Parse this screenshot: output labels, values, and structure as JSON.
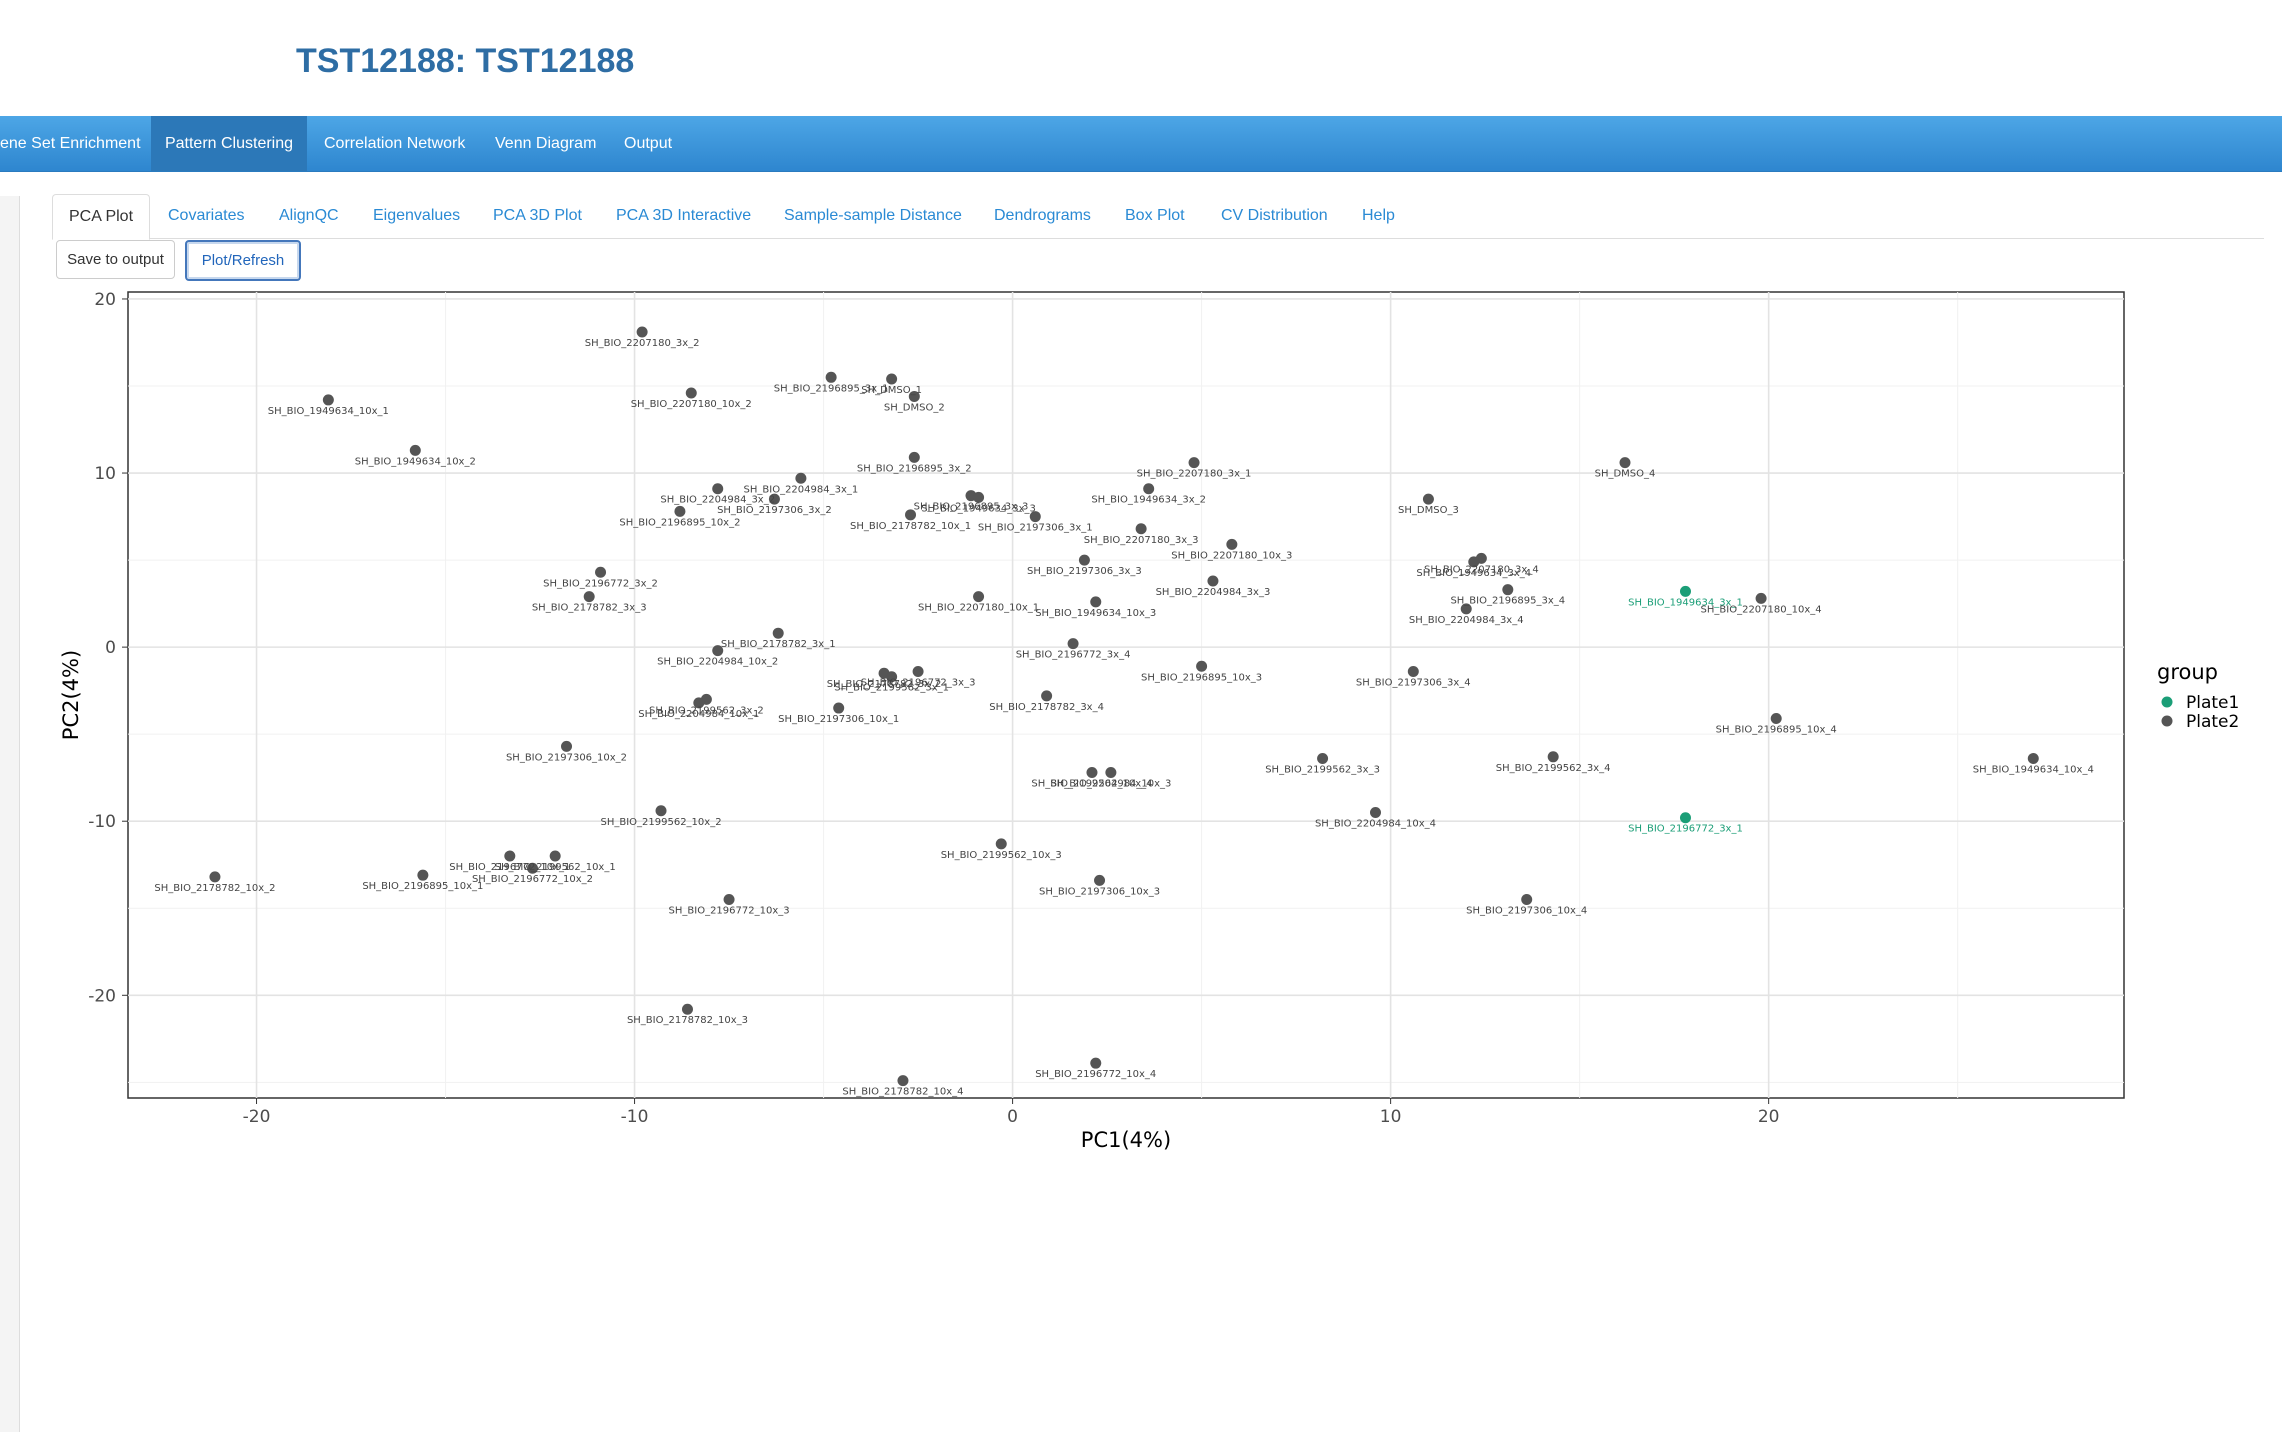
{
  "page": {
    "title": "TST12188: TST12188"
  },
  "navbar": {
    "items": [
      {
        "label": "ene Set Enrichment",
        "active": false
      },
      {
        "label": "Pattern Clustering",
        "active": true
      },
      {
        "label": "Correlation Network",
        "active": false
      },
      {
        "label": "Venn Diagram",
        "active": false
      },
      {
        "label": "Output",
        "active": false
      }
    ]
  },
  "tabs": [
    {
      "label": "PCA Plot",
      "active": true
    },
    {
      "label": "Covariates",
      "active": false
    },
    {
      "label": "AlignQC",
      "active": false
    },
    {
      "label": "Eigenvalues",
      "active": false
    },
    {
      "label": "PCA 3D Plot",
      "active": false
    },
    {
      "label": "PCA 3D Interactive",
      "active": false
    },
    {
      "label": "Sample-sample Distance",
      "active": false
    },
    {
      "label": "Dendrograms",
      "active": false
    },
    {
      "label": "Box Plot",
      "active": false
    },
    {
      "label": "CV Distribution",
      "active": false
    },
    {
      "label": "Help",
      "active": false
    }
  ],
  "buttons": {
    "save_label": "Save to output",
    "plot_label": "Plot/Refresh"
  },
  "chart_data": {
    "type": "scatter",
    "xlabel": "PC1(4%)",
    "ylabel": "PC2(4%)",
    "xlim": [
      -23.4,
      29.4
    ],
    "ylim": [
      -25.9,
      20.4
    ],
    "xticks": [
      -20,
      -10,
      0,
      10,
      20
    ],
    "yticks": [
      20,
      10,
      0,
      -10,
      -20
    ],
    "grid": true,
    "legend": {
      "title": "group",
      "placement": "right",
      "entries": [
        {
          "name": "Plate1",
          "color": "#1b9e77"
        },
        {
          "name": "Plate2",
          "color": "#555555"
        }
      ]
    },
    "points": [
      {
        "label": "SH_BIO_2207180_3x_2",
        "x": -9.8,
        "y": 18.1,
        "group": "Plate2"
      },
      {
        "label": "SH_BIO_1949634_10x_1",
        "x": -18.1,
        "y": 14.2,
        "group": "Plate2"
      },
      {
        "label": "SH_BIO_2207180_10x_2",
        "x": -8.5,
        "y": 14.6,
        "group": "Plate2"
      },
      {
        "label": "SH_BIO_2196895_3x_1",
        "x": -4.8,
        "y": 15.5,
        "group": "Plate2"
      },
      {
        "label": "SH_DMSO_1",
        "x": -3.2,
        "y": 15.4,
        "group": "Plate2"
      },
      {
        "label": "SH_DMSO_2",
        "x": -2.6,
        "y": 14.4,
        "group": "Plate2"
      },
      {
        "label": "SH_BIO_1949634_10x_2",
        "x": -15.8,
        "y": 11.3,
        "group": "Plate2"
      },
      {
        "label": "SH_BIO_2196895_3x_2",
        "x": -2.6,
        "y": 10.9,
        "group": "Plate2"
      },
      {
        "label": "SH_BIO_2204984_3x_1",
        "x": -5.6,
        "y": 9.7,
        "group": "Plate2"
      },
      {
        "label": "SH_BIO_2204984_3x_2",
        "x": -7.8,
        "y": 9.1,
        "group": "Plate2"
      },
      {
        "label": "SH_BIO_2207180_3x_1",
        "x": 4.8,
        "y": 10.6,
        "group": "Plate2"
      },
      {
        "label": "SH_BIO_1949634_3x_2",
        "x": 3.6,
        "y": 9.1,
        "group": "Plate2"
      },
      {
        "label": "SH_BIO_2196895_3x_3",
        "x": -1.1,
        "y": 8.7,
        "group": "Plate2"
      },
      {
        "label": "SH_BIO_1949634_3x_3",
        "x": -0.9,
        "y": 8.6,
        "group": "Plate2"
      },
      {
        "label": "SH_BIO_2197306_3x_2",
        "x": -6.3,
        "y": 8.5,
        "group": "Plate2"
      },
      {
        "label": "SH_BIO_2196895_10x_2",
        "x": -8.8,
        "y": 7.8,
        "group": "Plate2"
      },
      {
        "label": "SH_BIO_2178782_10x_1",
        "x": -2.7,
        "y": 7.6,
        "group": "Plate2"
      },
      {
        "label": "SH_BIO_2197306_3x_1",
        "x": 0.6,
        "y": 7.5,
        "group": "Plate2"
      },
      {
        "label": "SH_BIO_2207180_3x_3",
        "x": 3.4,
        "y": 6.8,
        "group": "Plate2"
      },
      {
        "label": "SH_BIO_2207180_10x_3",
        "x": 5.8,
        "y": 5.9,
        "group": "Plate2"
      },
      {
        "label": "SH_DMSO_4",
        "x": 16.2,
        "y": 10.6,
        "group": "Plate2"
      },
      {
        "label": "SH_DMSO_3",
        "x": 11.0,
        "y": 8.5,
        "group": "Plate2"
      },
      {
        "label": "SH_BIO_2207180_3x_4",
        "x": 12.4,
        "y": 5.1,
        "group": "Plate2"
      },
      {
        "label": "SH_BIO_1949634_3x_4",
        "x": 12.2,
        "y": 4.9,
        "group": "Plate2"
      },
      {
        "label": "SH_BIO_2196895_3x_4",
        "x": 13.1,
        "y": 3.3,
        "group": "Plate2"
      },
      {
        "label": "SH_BIO_2204984_3x_4",
        "x": 12.0,
        "y": 2.2,
        "group": "Plate2"
      },
      {
        "label": "SH_BIO_1949634_3x_1",
        "x": 17.8,
        "y": 3.2,
        "group": "Plate1"
      },
      {
        "label": "SH_BIO_2207180_10x_4",
        "x": 19.8,
        "y": 2.8,
        "group": "Plate2"
      },
      {
        "label": "SH_BIO_2197306_3x_3",
        "x": 1.9,
        "y": 5.0,
        "group": "Plate2"
      },
      {
        "label": "SH_BIO_2204984_3x_3",
        "x": 5.3,
        "y": 3.8,
        "group": "Plate2"
      },
      {
        "label": "SH_BIO_2207180_10x_1",
        "x": -0.9,
        "y": 2.9,
        "group": "Plate2"
      },
      {
        "label": "SH_BIO_1949634_10x_3",
        "x": 2.2,
        "y": 2.6,
        "group": "Plate2"
      },
      {
        "label": "SH_BIO_2196772_3x_2",
        "x": -10.9,
        "y": 4.3,
        "group": "Plate2"
      },
      {
        "label": "SH_BIO_2178782_3x_3",
        "x": -11.2,
        "y": 2.9,
        "group": "Plate2"
      },
      {
        "label": "SH_BIO_2178782_3x_1",
        "x": -6.2,
        "y": 0.8,
        "group": "Plate2"
      },
      {
        "label": "SH_BIO_2204984_10x_2",
        "x": -7.8,
        "y": -0.2,
        "group": "Plate2"
      },
      {
        "label": "SH_BIO_2196772_3x_4",
        "x": 1.6,
        "y": 0.2,
        "group": "Plate2"
      },
      {
        "label": "SH_BIO_2196895_10x_3",
        "x": 5.0,
        "y": -1.1,
        "group": "Plate2"
      },
      {
        "label": "SH_BIO_2197306_3x_4",
        "x": 10.6,
        "y": -1.4,
        "group": "Plate2"
      },
      {
        "label": "SH_BIO_2178782_3x_2",
        "x": -3.4,
        "y": -1.5,
        "group": "Plate2"
      },
      {
        "label": "SH_BIO_2196772_3x_3",
        "x": -2.5,
        "y": -1.4,
        "group": "Plate2"
      },
      {
        "label": "SH_BIO_2199562_3x_1",
        "x": -3.2,
        "y": -1.7,
        "group": "Plate2"
      },
      {
        "label": "SH_BIO_2199562_3x_2",
        "x": -8.1,
        "y": -3.0,
        "group": "Plate2"
      },
      {
        "label": "SH_BIO_2204984_10x_1",
        "x": -8.3,
        "y": -3.2,
        "group": "Plate2"
      },
      {
        "label": "SH_BIO_2178782_3x_4",
        "x": 0.9,
        "y": -2.8,
        "group": "Plate2"
      },
      {
        "label": "SH_BIO_2197306_10x_1",
        "x": -4.6,
        "y": -3.5,
        "group": "Plate2"
      },
      {
        "label": "SH_BIO_2196895_10x_4",
        "x": 20.2,
        "y": -4.1,
        "group": "Plate2"
      },
      {
        "label": "SH_BIO_2197306_10x_2",
        "x": -11.8,
        "y": -5.7,
        "group": "Plate2"
      },
      {
        "label": "SH_BIO_2199562_3x_4",
        "x": 14.3,
        "y": -6.3,
        "group": "Plate2"
      },
      {
        "label": "SH_BIO_1949634_10x_4",
        "x": 27.0,
        "y": -6.4,
        "group": "Plate2"
      },
      {
        "label": "SH_BIO_2199562_3x_3",
        "x": 8.2,
        "y": -6.4,
        "group": "Plate2"
      },
      {
        "label": "SH_BIO_2199562_10x_4",
        "x": 2.1,
        "y": -7.2,
        "group": "Plate2"
      },
      {
        "label": "SH_BIO_2204984_10x_3",
        "x": 2.6,
        "y": -7.2,
        "group": "Plate2"
      },
      {
        "label": "SH_BIO_2199562_10x_2",
        "x": -9.3,
        "y": -9.4,
        "group": "Plate2"
      },
      {
        "label": "SH_BIO_2204984_10x_4",
        "x": 9.6,
        "y": -9.5,
        "group": "Plate2"
      },
      {
        "label": "SH_BIO_2196772_3x_1",
        "x": 17.8,
        "y": -9.8,
        "group": "Plate1"
      },
      {
        "label": "SH_BIO_2199562_10x_3",
        "x": -0.3,
        "y": -11.3,
        "group": "Plate2"
      },
      {
        "label": "SH_BIO_2196772_10x_1",
        "x": -13.3,
        "y": -12.0,
        "group": "Plate2"
      },
      {
        "label": "SH_BIO_2199562_10x_1",
        "x": -12.1,
        "y": -12.0,
        "group": "Plate2"
      },
      {
        "label": "SH_BIO_2196772_10x_2",
        "x": -12.7,
        "y": -12.7,
        "group": "Plate2"
      },
      {
        "label": "SH_BIO_2178782_10x_2",
        "x": -21.1,
        "y": -13.2,
        "group": "Plate2"
      },
      {
        "label": "SH_BIO_2196895_10x_1",
        "x": -15.6,
        "y": -13.1,
        "group": "Plate2"
      },
      {
        "label": "SH_BIO_2197306_10x_3",
        "x": 2.3,
        "y": -13.4,
        "group": "Plate2"
      },
      {
        "label": "SH_BIO_2196772_10x_3",
        "x": -7.5,
        "y": -14.5,
        "group": "Plate2"
      },
      {
        "label": "SH_BIO_2197306_10x_4",
        "x": 13.6,
        "y": -14.5,
        "group": "Plate2"
      },
      {
        "label": "SH_BIO_2178782_10x_3",
        "x": -8.6,
        "y": -20.8,
        "group": "Plate2"
      },
      {
        "label": "SH_BIO_2196772_10x_4",
        "x": 2.2,
        "y": -23.9,
        "group": "Plate2"
      },
      {
        "label": "SH_BIO_2178782_10x_4",
        "x": -2.9,
        "y": -24.9,
        "group": "Plate2"
      }
    ]
  }
}
